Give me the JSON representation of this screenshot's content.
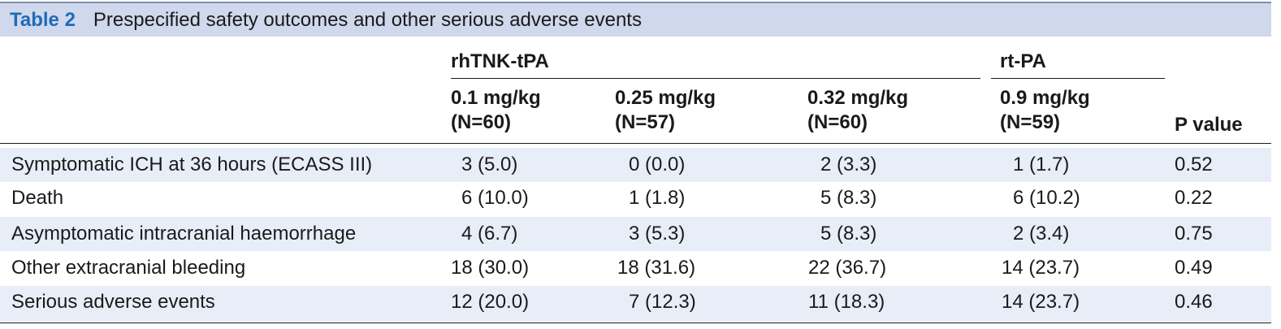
{
  "table": {
    "label": "Table 2",
    "title": "Prespecified safety outcomes and other serious adverse events",
    "group_headers": [
      "rhTNK-tPA",
      "rt-PA"
    ],
    "dose_headers": [
      {
        "dose": "0.1 mg/kg",
        "n": "(N=60)"
      },
      {
        "dose": "0.25 mg/kg",
        "n": "(N=57)"
      },
      {
        "dose": "0.32 mg/kg",
        "n": "(N=60)"
      },
      {
        "dose": "0.9 mg/kg",
        "n": "(N=59)"
      }
    ],
    "pvalue_header": "P value",
    "rows": [
      {
        "label": "Symptomatic ICH at 36 hours (ECASS III)",
        "v1": "3 (5.0)",
        "v2": "0 (0.0)",
        "v3": "2 (3.3)",
        "v4": "1 (1.7)",
        "p": "0.52"
      },
      {
        "label": "Death",
        "v1": "6 (10.0)",
        "v2": "1 (1.8)",
        "v3": "5 (8.3)",
        "v4": "6 (10.2)",
        "p": "0.22"
      },
      {
        "label": "Asymptomatic intracranial haemorrhage",
        "v1": "4 (6.7)",
        "v2": "3 (5.3)",
        "v3": "5 (8.3)",
        "v4": "2 (3.4)",
        "p": "0.75"
      },
      {
        "label": "Other extracranial bleeding",
        "v1": "18 (30.0)",
        "v2": "18 (31.6)",
        "v3": "22 (36.7)",
        "v4": "14 (23.7)",
        "p": "0.49"
      },
      {
        "label": "Serious adverse events",
        "v1": "12 (20.0)",
        "v2": "7 (12.3)",
        "v3": "11 (18.3)",
        "v4": "14 (23.7)",
        "p": "0.46"
      }
    ]
  }
}
